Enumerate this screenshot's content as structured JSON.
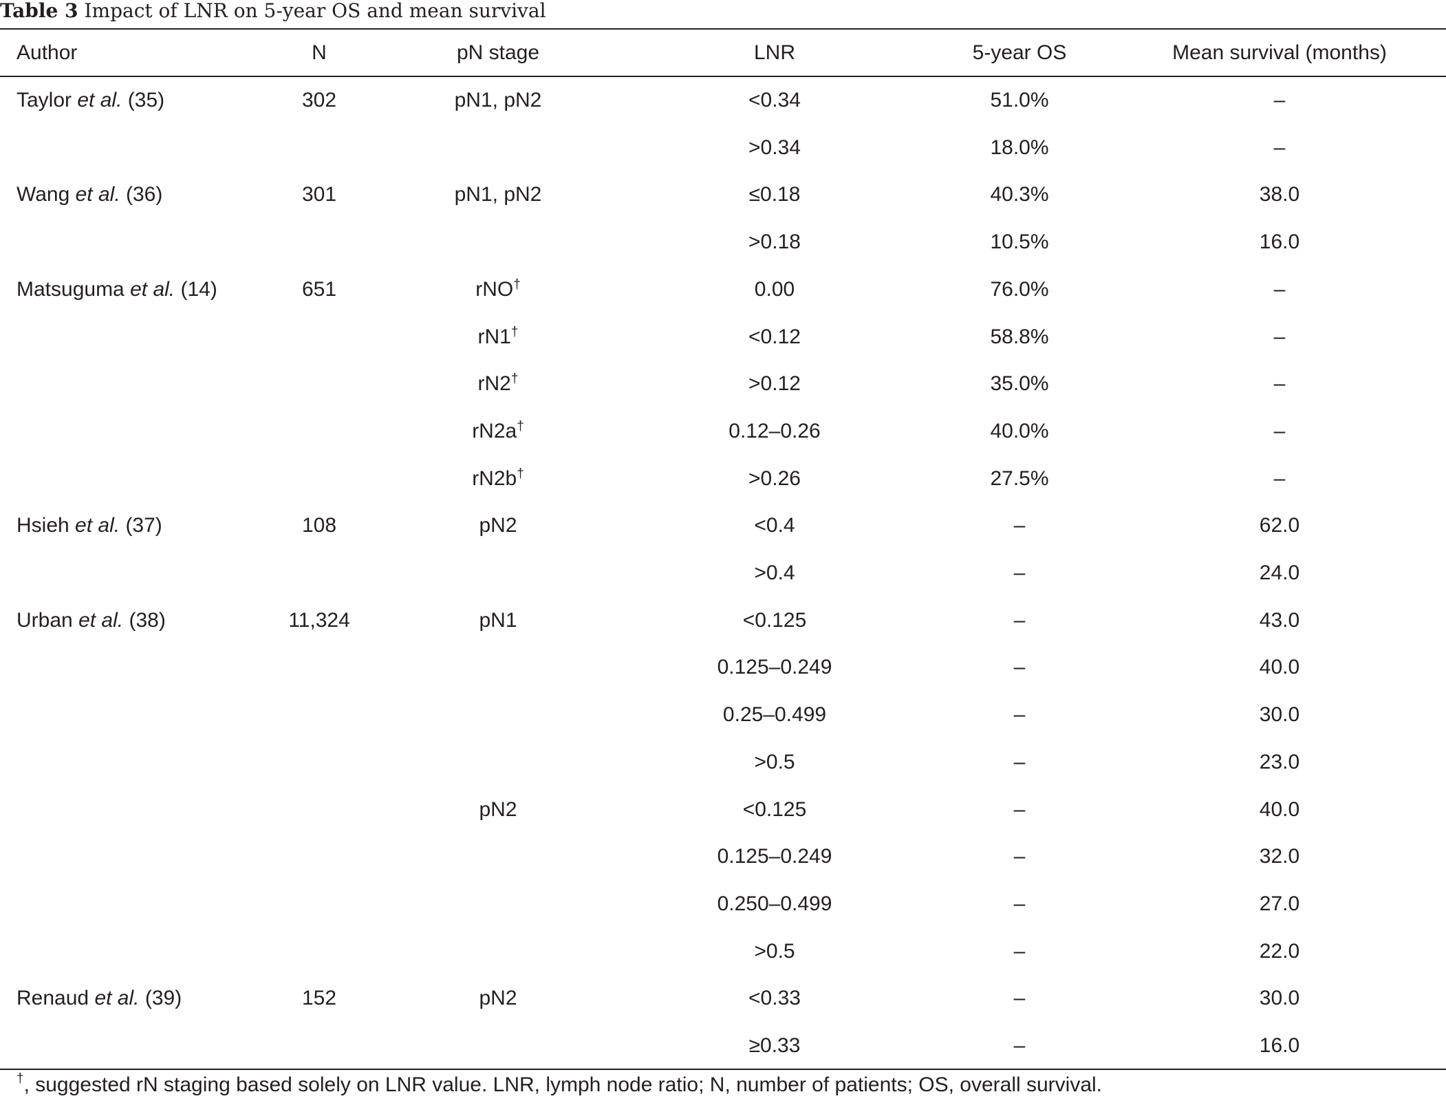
{
  "caption": {
    "label": "Table 3",
    "text": "Impact of LNR on 5-year OS and mean survival"
  },
  "headers": {
    "author": "Author",
    "n": "N",
    "pn_stage": "pN stage",
    "lnr": "LNR",
    "os5": "5-year OS",
    "mean_survival": "Mean survival (months)"
  },
  "rows": [
    {
      "author_name": "Taylor",
      "author_etal": "et al.",
      "author_ref": "(35)",
      "n": "302",
      "pn_stage": "pN1, pN2",
      "pn_sup": "",
      "lnr": "<0.34",
      "os5": "51.0%",
      "mean_survival": "–"
    },
    {
      "author_name": "",
      "author_etal": "",
      "author_ref": "",
      "n": "",
      "pn_stage": "",
      "pn_sup": "",
      "lnr": ">0.34",
      "os5": "18.0%",
      "mean_survival": "–"
    },
    {
      "author_name": "Wang",
      "author_etal": "et al.",
      "author_ref": "(36)",
      "n": "301",
      "pn_stage": "pN1, pN2",
      "pn_sup": "",
      "lnr": "≤0.18",
      "os5": "40.3%",
      "mean_survival": "38.0"
    },
    {
      "author_name": "",
      "author_etal": "",
      "author_ref": "",
      "n": "",
      "pn_stage": "",
      "pn_sup": "",
      "lnr": ">0.18",
      "os5": "10.5%",
      "mean_survival": "16.0"
    },
    {
      "author_name": "Matsuguma",
      "author_etal": "et al.",
      "author_ref": "(14)",
      "n": "651",
      "pn_stage": "rNO",
      "pn_sup": "†",
      "lnr": "0.00",
      "os5": "76.0%",
      "mean_survival": "–"
    },
    {
      "author_name": "",
      "author_etal": "",
      "author_ref": "",
      "n": "",
      "pn_stage": "rN1",
      "pn_sup": "†",
      "lnr": "<0.12",
      "os5": "58.8%",
      "mean_survival": "–"
    },
    {
      "author_name": "",
      "author_etal": "",
      "author_ref": "",
      "n": "",
      "pn_stage": "rN2",
      "pn_sup": "†",
      "lnr": ">0.12",
      "os5": "35.0%",
      "mean_survival": "–"
    },
    {
      "author_name": "",
      "author_etal": "",
      "author_ref": "",
      "n": "",
      "pn_stage": "rN2a",
      "pn_sup": "†",
      "lnr": "0.12–0.26",
      "os5": "40.0%",
      "mean_survival": "–"
    },
    {
      "author_name": "",
      "author_etal": "",
      "author_ref": "",
      "n": "",
      "pn_stage": "rN2b",
      "pn_sup": "†",
      "lnr": ">0.26",
      "os5": "27.5%",
      "mean_survival": "–"
    },
    {
      "author_name": "Hsieh",
      "author_etal": "et al.",
      "author_ref": "(37)",
      "n": "108",
      "pn_stage": "pN2",
      "pn_sup": "",
      "lnr": "<0.4",
      "os5": "–",
      "mean_survival": "62.0"
    },
    {
      "author_name": "",
      "author_etal": "",
      "author_ref": "",
      "n": "",
      "pn_stage": "",
      "pn_sup": "",
      "lnr": ">0.4",
      "os5": "–",
      "mean_survival": "24.0"
    },
    {
      "author_name": "Urban",
      "author_etal": "et al.",
      "author_ref": "(38)",
      "n": "11,324",
      "pn_stage": "pN1",
      "pn_sup": "",
      "lnr": "<0.125",
      "os5": "–",
      "mean_survival": "43.0"
    },
    {
      "author_name": "",
      "author_etal": "",
      "author_ref": "",
      "n": "",
      "pn_stage": "",
      "pn_sup": "",
      "lnr": "0.125–0.249",
      "os5": "–",
      "mean_survival": "40.0"
    },
    {
      "author_name": "",
      "author_etal": "",
      "author_ref": "",
      "n": "",
      "pn_stage": "",
      "pn_sup": "",
      "lnr": "0.25–0.499",
      "os5": "–",
      "mean_survival": "30.0"
    },
    {
      "author_name": "",
      "author_etal": "",
      "author_ref": "",
      "n": "",
      "pn_stage": "",
      "pn_sup": "",
      "lnr": ">0.5",
      "os5": "–",
      "mean_survival": "23.0"
    },
    {
      "author_name": "",
      "author_etal": "",
      "author_ref": "",
      "n": "",
      "pn_stage": "pN2",
      "pn_sup": "",
      "lnr": "<0.125",
      "os5": "–",
      "mean_survival": "40.0"
    },
    {
      "author_name": "",
      "author_etal": "",
      "author_ref": "",
      "n": "",
      "pn_stage": "",
      "pn_sup": "",
      "lnr": "0.125–0.249",
      "os5": "–",
      "mean_survival": "32.0"
    },
    {
      "author_name": "",
      "author_etal": "",
      "author_ref": "",
      "n": "",
      "pn_stage": "",
      "pn_sup": "",
      "lnr": "0.250–0.499",
      "os5": "–",
      "mean_survival": "27.0"
    },
    {
      "author_name": "",
      "author_etal": "",
      "author_ref": "",
      "n": "",
      "pn_stage": "",
      "pn_sup": "",
      "lnr": ">0.5",
      "os5": "–",
      "mean_survival": "22.0"
    },
    {
      "author_name": "Renaud",
      "author_etal": "et al.",
      "author_ref": "(39)",
      "n": "152",
      "pn_stage": "pN2",
      "pn_sup": "",
      "lnr": "<0.33",
      "os5": "–",
      "mean_survival": "30.0"
    },
    {
      "author_name": "",
      "author_etal": "",
      "author_ref": "",
      "n": "",
      "pn_stage": "",
      "pn_sup": "",
      "lnr": "≥0.33",
      "os5": "–",
      "mean_survival": "16.0"
    }
  ],
  "footnote": {
    "mark": "†",
    "text": ", suggested rN staging based solely on LNR value. LNR, lymph node ratio; N, number of patients; OS, overall survival."
  }
}
